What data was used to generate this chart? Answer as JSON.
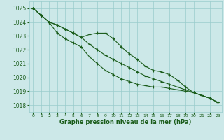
{
  "xlabel": "Graphe pression niveau de la mer (hPa)",
  "ylim": [
    1017.5,
    1025.5
  ],
  "xlim": [
    -0.5,
    23.5
  ],
  "yticks": [
    1018,
    1019,
    1020,
    1021,
    1022,
    1023,
    1024,
    1025
  ],
  "xticks": [
    0,
    1,
    2,
    3,
    4,
    5,
    6,
    7,
    8,
    9,
    10,
    11,
    12,
    13,
    14,
    15,
    16,
    17,
    18,
    19,
    20,
    21,
    22,
    23
  ],
  "bg_color": "#cce8e8",
  "grid_color": "#99cccc",
  "line_color": "#1a5c1a",
  "line1": [
    1025.0,
    1024.5,
    1024.0,
    1023.8,
    1023.5,
    1023.2,
    1022.9,
    1023.1,
    1023.2,
    1023.2,
    1022.8,
    1022.2,
    1021.7,
    1021.3,
    1020.8,
    1020.5,
    1020.4,
    1020.2,
    1019.8,
    1019.3,
    1018.9,
    1018.7,
    1018.5,
    1018.2
  ],
  "line2": [
    1025.0,
    1024.5,
    1024.0,
    1023.8,
    1023.5,
    1023.2,
    1022.9,
    1022.4,
    1022.0,
    1021.6,
    1021.3,
    1021.0,
    1020.7,
    1020.4,
    1020.1,
    1019.9,
    1019.7,
    1019.5,
    1019.3,
    1019.1,
    1018.9,
    1018.7,
    1018.5,
    1018.2
  ],
  "line3": [
    1025.0,
    1024.5,
    1024.0,
    1023.2,
    1022.8,
    1022.5,
    1022.2,
    1021.5,
    1021.0,
    1020.5,
    1020.2,
    1019.9,
    1019.7,
    1019.5,
    1019.4,
    1019.3,
    1019.3,
    1019.2,
    1019.1,
    1019.0,
    1018.9,
    1018.7,
    1018.5,
    1018.2
  ]
}
